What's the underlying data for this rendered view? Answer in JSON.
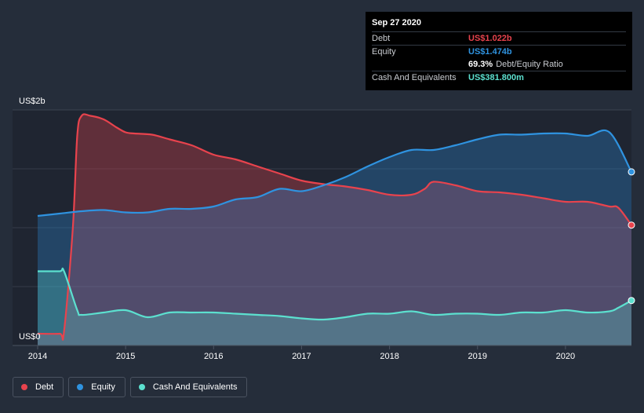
{
  "chart_data": {
    "type": "area",
    "ylabel_top": "US$2b",
    "ylabel_bottom": "US$0",
    "ylim": [
      0,
      2.0
    ],
    "xlim": [
      2014.0,
      2020.75
    ],
    "x_ticks": [
      "2014",
      "2015",
      "2016",
      "2017",
      "2018",
      "2019",
      "2020"
    ],
    "series": [
      {
        "name": "Debt",
        "color": "#e8434d",
        "x": [
          2014.0,
          2014.25,
          2014.3,
          2014.4,
          2014.45,
          2014.5,
          2014.6,
          2014.75,
          2014.9,
          2015.0,
          2015.1,
          2015.3,
          2015.5,
          2015.75,
          2016.0,
          2016.25,
          2016.5,
          2016.75,
          2017.0,
          2017.25,
          2017.5,
          2017.75,
          2018.0,
          2018.25,
          2018.4,
          2018.5,
          2018.75,
          2019.0,
          2019.25,
          2019.5,
          2019.75,
          2020.0,
          2020.25,
          2020.5,
          2020.6,
          2020.75
        ],
        "values": [
          0.1,
          0.1,
          0.12,
          1.0,
          1.78,
          1.95,
          1.95,
          1.92,
          1.85,
          1.81,
          1.8,
          1.79,
          1.75,
          1.7,
          1.62,
          1.58,
          1.52,
          1.46,
          1.4,
          1.37,
          1.35,
          1.32,
          1.28,
          1.28,
          1.33,
          1.39,
          1.36,
          1.31,
          1.3,
          1.28,
          1.25,
          1.22,
          1.22,
          1.18,
          1.17,
          1.022
        ]
      },
      {
        "name": "Equity",
        "color": "#2f93e0",
        "x": [
          2014.0,
          2014.25,
          2014.5,
          2014.75,
          2015.0,
          2015.25,
          2015.5,
          2015.75,
          2016.0,
          2016.25,
          2016.5,
          2016.75,
          2017.0,
          2017.25,
          2017.5,
          2017.75,
          2018.0,
          2018.25,
          2018.5,
          2018.75,
          2019.0,
          2019.25,
          2019.5,
          2019.75,
          2020.0,
          2020.25,
          2020.5,
          2020.75
        ],
        "values": [
          1.1,
          1.12,
          1.14,
          1.15,
          1.13,
          1.13,
          1.16,
          1.16,
          1.18,
          1.24,
          1.26,
          1.33,
          1.31,
          1.36,
          1.43,
          1.52,
          1.6,
          1.66,
          1.66,
          1.7,
          1.75,
          1.79,
          1.79,
          1.8,
          1.8,
          1.78,
          1.81,
          1.474
        ]
      },
      {
        "name": "Cash And Equivalents",
        "color": "#5ce0cf",
        "x": [
          2014.0,
          2014.25,
          2014.3,
          2014.45,
          2014.5,
          2014.75,
          2015.0,
          2015.25,
          2015.5,
          2015.75,
          2016.0,
          2016.25,
          2016.5,
          2016.75,
          2017.0,
          2017.25,
          2017.5,
          2017.75,
          2018.0,
          2018.25,
          2018.5,
          2018.75,
          2019.0,
          2019.25,
          2019.5,
          2019.75,
          2020.0,
          2020.25,
          2020.5,
          2020.6,
          2020.75
        ],
        "values": [
          0.63,
          0.63,
          0.63,
          0.3,
          0.26,
          0.28,
          0.3,
          0.24,
          0.28,
          0.28,
          0.28,
          0.27,
          0.26,
          0.25,
          0.23,
          0.22,
          0.24,
          0.27,
          0.27,
          0.29,
          0.26,
          0.27,
          0.27,
          0.26,
          0.28,
          0.28,
          0.3,
          0.28,
          0.29,
          0.32,
          0.3818
        ]
      }
    ]
  },
  "tooltip": {
    "date": "Sep 27 2020",
    "rows": [
      {
        "label": "Debt",
        "value": "US$1.022b",
        "color": "#e8434d"
      },
      {
        "label": "Equity",
        "value": "US$1.474b",
        "color": "#2f93e0"
      },
      {
        "label": "",
        "value": "69.3%",
        "suffix": "Debt/Equity Ratio",
        "color": "#ffffff"
      },
      {
        "label": "Cash And Equivalents",
        "value": "US$381.800m",
        "color": "#5ce0cf"
      }
    ]
  },
  "legend": [
    {
      "label": "Debt",
      "color": "#e8434d"
    },
    {
      "label": "Equity",
      "color": "#2f93e0"
    },
    {
      "label": "Cash And Equivalents",
      "color": "#5ce0cf"
    }
  ]
}
